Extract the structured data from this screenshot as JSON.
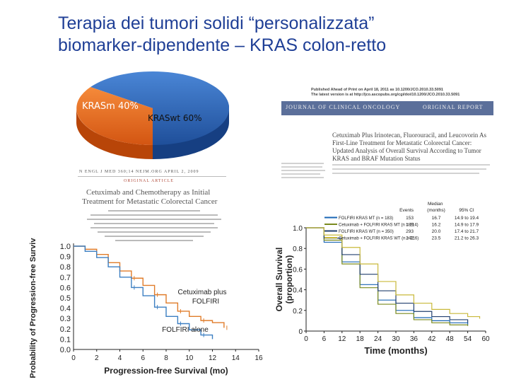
{
  "title": {
    "line1": "Terapia dei tumori solidi “personalizzata”",
    "line2": "biomarker-dipendente – KRAS colon-retto"
  },
  "pie": {
    "slices": [
      {
        "label": "KRASm 40%",
        "value": 40,
        "color": "#e8641e"
      },
      {
        "label": "KRASwt 60%",
        "value": 60,
        "color": "#2b5fb0"
      }
    ]
  },
  "nejm_article": {
    "header": "N ENGL J MED 360;14   NEJM.ORG   APRIL 2, 2009",
    "tag": "ORIGINAL ARTICLE",
    "title_line1": "Cetuximab and Chemotherapy as Initial",
    "title_line2": "Treatment for Metastatic Colorectal Cancer"
  },
  "jco_article": {
    "header_line1": "Published Ahead of Print on April 18, 2011 as 10.1200/JCO.2010.33.5091",
    "header_line2": "The latest version is at http://jco.ascopubs.org/cgi/doi/10.1200/JCO.2010.33.5091",
    "journal_name": "JOURNAL OF CLINICAL ONCOLOGY",
    "report_type": "ORIGINAL REPORT",
    "title_lines": [
      "Cetuximab Plus Irinotecan, Fluorouracil, and Leucovorin As",
      "First-Line Treatment for Metastatic Colorectal Cancer:",
      "Updated Analysis of Overall Survival According to Tumor",
      "KRAS and BRAF Mutation Status"
    ]
  },
  "chart_data": [
    {
      "type": "line",
      "xlabel": "Progression-free Survival (mo)",
      "ylabel": "Probability of Progression-free Survival",
      "x_ticks": [
        "0",
        "2",
        "4",
        "6",
        "8",
        "10",
        "12",
        "14",
        "16"
      ],
      "y_ticks": [
        "1.0",
        "0.9",
        "0.8",
        "0.7",
        "0.6",
        "0.5",
        "0.4",
        "0.3",
        "0.2",
        "0.1",
        "0.0"
      ],
      "xlim": [
        0,
        16
      ],
      "ylim": [
        0,
        1
      ],
      "series": [
        {
          "name": "Cetuximab plus FOLFIRI",
          "color": "#e07c2a",
          "x": [
            0,
            1,
            2,
            3,
            4,
            5,
            6,
            7,
            8,
            9,
            10,
            11,
            12,
            13
          ],
          "y": [
            1.0,
            0.97,
            0.92,
            0.84,
            0.76,
            0.69,
            0.62,
            0.53,
            0.45,
            0.37,
            0.32,
            0.28,
            0.26,
            0.21
          ]
        },
        {
          "name": "FOLFIRI alone",
          "color": "#3c7fc2",
          "x": [
            0,
            1,
            2,
            3,
            4,
            5,
            6,
            7,
            8,
            9,
            10,
            11,
            12
          ],
          "y": [
            1.0,
            0.95,
            0.89,
            0.8,
            0.7,
            0.6,
            0.52,
            0.41,
            0.32,
            0.25,
            0.19,
            0.14,
            0.1
          ]
        }
      ]
    },
    {
      "type": "line",
      "xlabel": "Time (months)",
      "ylabel": "Overall Survival (proportion)",
      "x_ticks": [
        "0",
        "6",
        "12",
        "18",
        "24",
        "30",
        "36",
        "42",
        "48",
        "54",
        "60"
      ],
      "y_ticks": [
        "1.0",
        "0.8",
        "0.6",
        "0.4",
        "0.2",
        "0"
      ],
      "xlim": [
        0,
        60
      ],
      "ylim": [
        0,
        1
      ],
      "legend_headers": [
        "Events",
        "Median (months)",
        "95% CI"
      ],
      "series": [
        {
          "name": "FOLFIRI KRAS MT (n = 183)",
          "events": "153",
          "median": "16.7",
          "ci": "14.9 to 19.4",
          "color": "#1a66b5",
          "x": [
            0,
            6,
            12,
            18,
            24,
            30,
            36,
            42,
            48,
            54
          ],
          "y": [
            1.0,
            0.86,
            0.67,
            0.45,
            0.3,
            0.2,
            0.13,
            0.1,
            0.08,
            0.06
          ]
        },
        {
          "name": "Cetuximab + FOLFIRI KRAS MT (n = 214)",
          "events": "189",
          "median": "16.2",
          "ci": "14.9 to 17.9",
          "color": "#7a8a1e",
          "x": [
            0,
            6,
            12,
            18,
            24,
            30,
            36,
            42,
            48,
            54
          ],
          "y": [
            1.0,
            0.88,
            0.65,
            0.42,
            0.26,
            0.17,
            0.11,
            0.08,
            0.06,
            0.05
          ]
        },
        {
          "name": "FOLFIRI KRAS WT (n = 350)",
          "events": "293",
          "median": "20.0",
          "ci": "17.4 to 21.7",
          "color": "#23406f",
          "x": [
            0,
            6,
            12,
            18,
            24,
            30,
            36,
            42,
            48,
            54
          ],
          "y": [
            1.0,
            0.9,
            0.74,
            0.55,
            0.39,
            0.27,
            0.19,
            0.14,
            0.11,
            0.08
          ]
        },
        {
          "name": "Cetuximab + FOLFIRI KRAS WT (n = 316)",
          "events": "242",
          "median": "23.5",
          "ci": "21.2 to 26.3",
          "color": "#c9b93a",
          "x": [
            0,
            6,
            12,
            18,
            24,
            30,
            36,
            42,
            48,
            54,
            58
          ],
          "y": [
            1.0,
            0.93,
            0.81,
            0.65,
            0.48,
            0.35,
            0.27,
            0.21,
            0.17,
            0.14,
            0.12
          ]
        }
      ]
    }
  ]
}
